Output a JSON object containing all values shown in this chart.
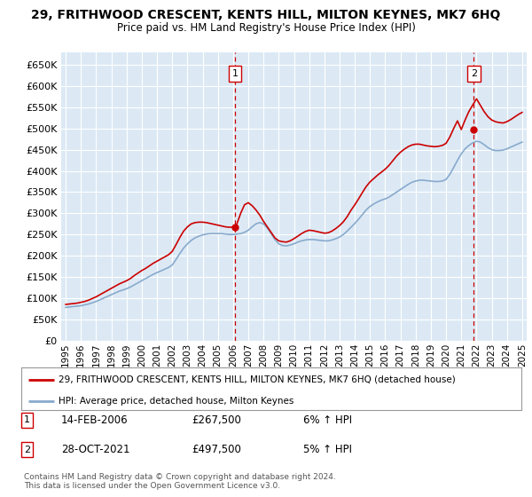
{
  "title": "29, FRITHWOOD CRESCENT, KENTS HILL, MILTON KEYNES, MK7 6HQ",
  "subtitle": "Price paid vs. HM Land Registry's House Price Index (HPI)",
  "legend_line1": "29, FRITHWOOD CRESCENT, KENTS HILL, MILTON KEYNES, MK7 6HQ (detached house)",
  "legend_line2": "HPI: Average price, detached house, Milton Keynes",
  "annotation1_label": "1",
  "annotation1_date": "14-FEB-2006",
  "annotation1_price": "£267,500",
  "annotation1_hpi": "6% ↑ HPI",
  "annotation1_year": 2006.12,
  "annotation1_value": 267500,
  "annotation2_label": "2",
  "annotation2_date": "28-OCT-2021",
  "annotation2_price": "£497,500",
  "annotation2_hpi": "5% ↑ HPI",
  "annotation2_year": 2021.83,
  "annotation2_value": 497500,
  "footer_line1": "Contains HM Land Registry data © Crown copyright and database right 2024.",
  "footer_line2": "This data is licensed under the Open Government Licence v3.0.",
  "ylim": [
    0,
    680000
  ],
  "yticks": [
    0,
    50000,
    100000,
    150000,
    200000,
    250000,
    300000,
    350000,
    400000,
    450000,
    500000,
    550000,
    600000,
    650000
  ],
  "bg_color": "#dce9f5",
  "red_color": "#cc0000",
  "blue_color": "#88aacc",
  "grid_color": "#ffffff",
  "xtick_years": [
    1995,
    1996,
    1997,
    1998,
    1999,
    2000,
    2001,
    2002,
    2003,
    2004,
    2005,
    2006,
    2007,
    2008,
    2009,
    2010,
    2011,
    2012,
    2013,
    2014,
    2015,
    2016,
    2017,
    2018,
    2019,
    2020,
    2021,
    2022,
    2023,
    2024,
    2025
  ]
}
